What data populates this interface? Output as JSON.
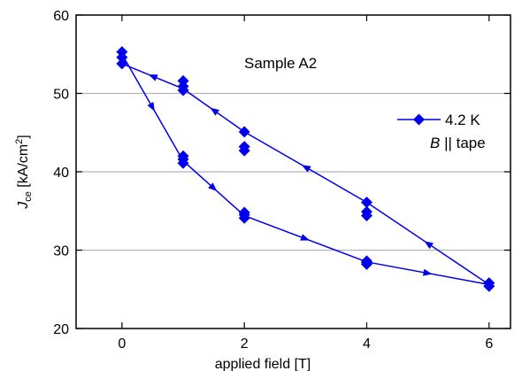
{
  "chart_data": {
    "type": "scatter",
    "title": "",
    "xlabel": "applied field [T]",
    "ylabel": {
      "main": "J",
      "sub": "ce",
      "unit": " [kA/cm",
      "sup": "2",
      "close": "]"
    },
    "xlim": [
      -0.75,
      6.35
    ],
    "ylim": [
      20,
      60
    ],
    "xticks": [
      0,
      2,
      4,
      6
    ],
    "yticks": [
      20,
      30,
      40,
      50,
      60
    ],
    "grid": {
      "y": [
        30,
        40,
        50
      ],
      "color": "#b4b4b4"
    },
    "annotation": "Sample A2",
    "legend": {
      "placement": "right",
      "entry": "4.2 K",
      "condition": {
        "italic": "B",
        "rest": " || tape"
      }
    },
    "series": [
      {
        "name": "4.2 K",
        "color": "#0000ee",
        "markers": [
          {
            "x": 0,
            "y": 55.3
          },
          {
            "x": 0,
            "y": 54.6
          },
          {
            "x": 0,
            "y": 53.8
          },
          {
            "x": 1,
            "y": 51.6
          },
          {
            "x": 1,
            "y": 50.9
          },
          {
            "x": 1,
            "y": 50.4
          },
          {
            "x": 1,
            "y": 42.0
          },
          {
            "x": 1,
            "y": 41.6
          },
          {
            "x": 1,
            "y": 41.1
          },
          {
            "x": 2,
            "y": 45.1
          },
          {
            "x": 2,
            "y": 43.2
          },
          {
            "x": 2,
            "y": 42.7
          },
          {
            "x": 2,
            "y": 34.8
          },
          {
            "x": 2,
            "y": 34.5
          },
          {
            "x": 2,
            "y": 34.1
          },
          {
            "x": 4,
            "y": 36.1
          },
          {
            "x": 4,
            "y": 34.9
          },
          {
            "x": 4,
            "y": 34.4
          },
          {
            "x": 4,
            "y": 28.6
          },
          {
            "x": 4,
            "y": 28.4
          },
          {
            "x": 4,
            "y": 28.2
          },
          {
            "x": 6,
            "y": 25.8
          },
          {
            "x": 6,
            "y": 25.4
          }
        ],
        "path_up": [
          {
            "x": 0,
            "y": 55.0
          },
          {
            "x": 1,
            "y": 41.4
          },
          {
            "x": 2,
            "y": 34.4
          },
          {
            "x": 4,
            "y": 28.5
          },
          {
            "x": 6,
            "y": 25.6
          }
        ],
        "path_down": [
          {
            "x": 6,
            "y": 25.6
          },
          {
            "x": 4,
            "y": 36.1
          },
          {
            "x": 2,
            "y": 45.1
          },
          {
            "x": 1,
            "y": 50.6
          },
          {
            "x": 0,
            "y": 53.8
          }
        ]
      }
    ]
  }
}
